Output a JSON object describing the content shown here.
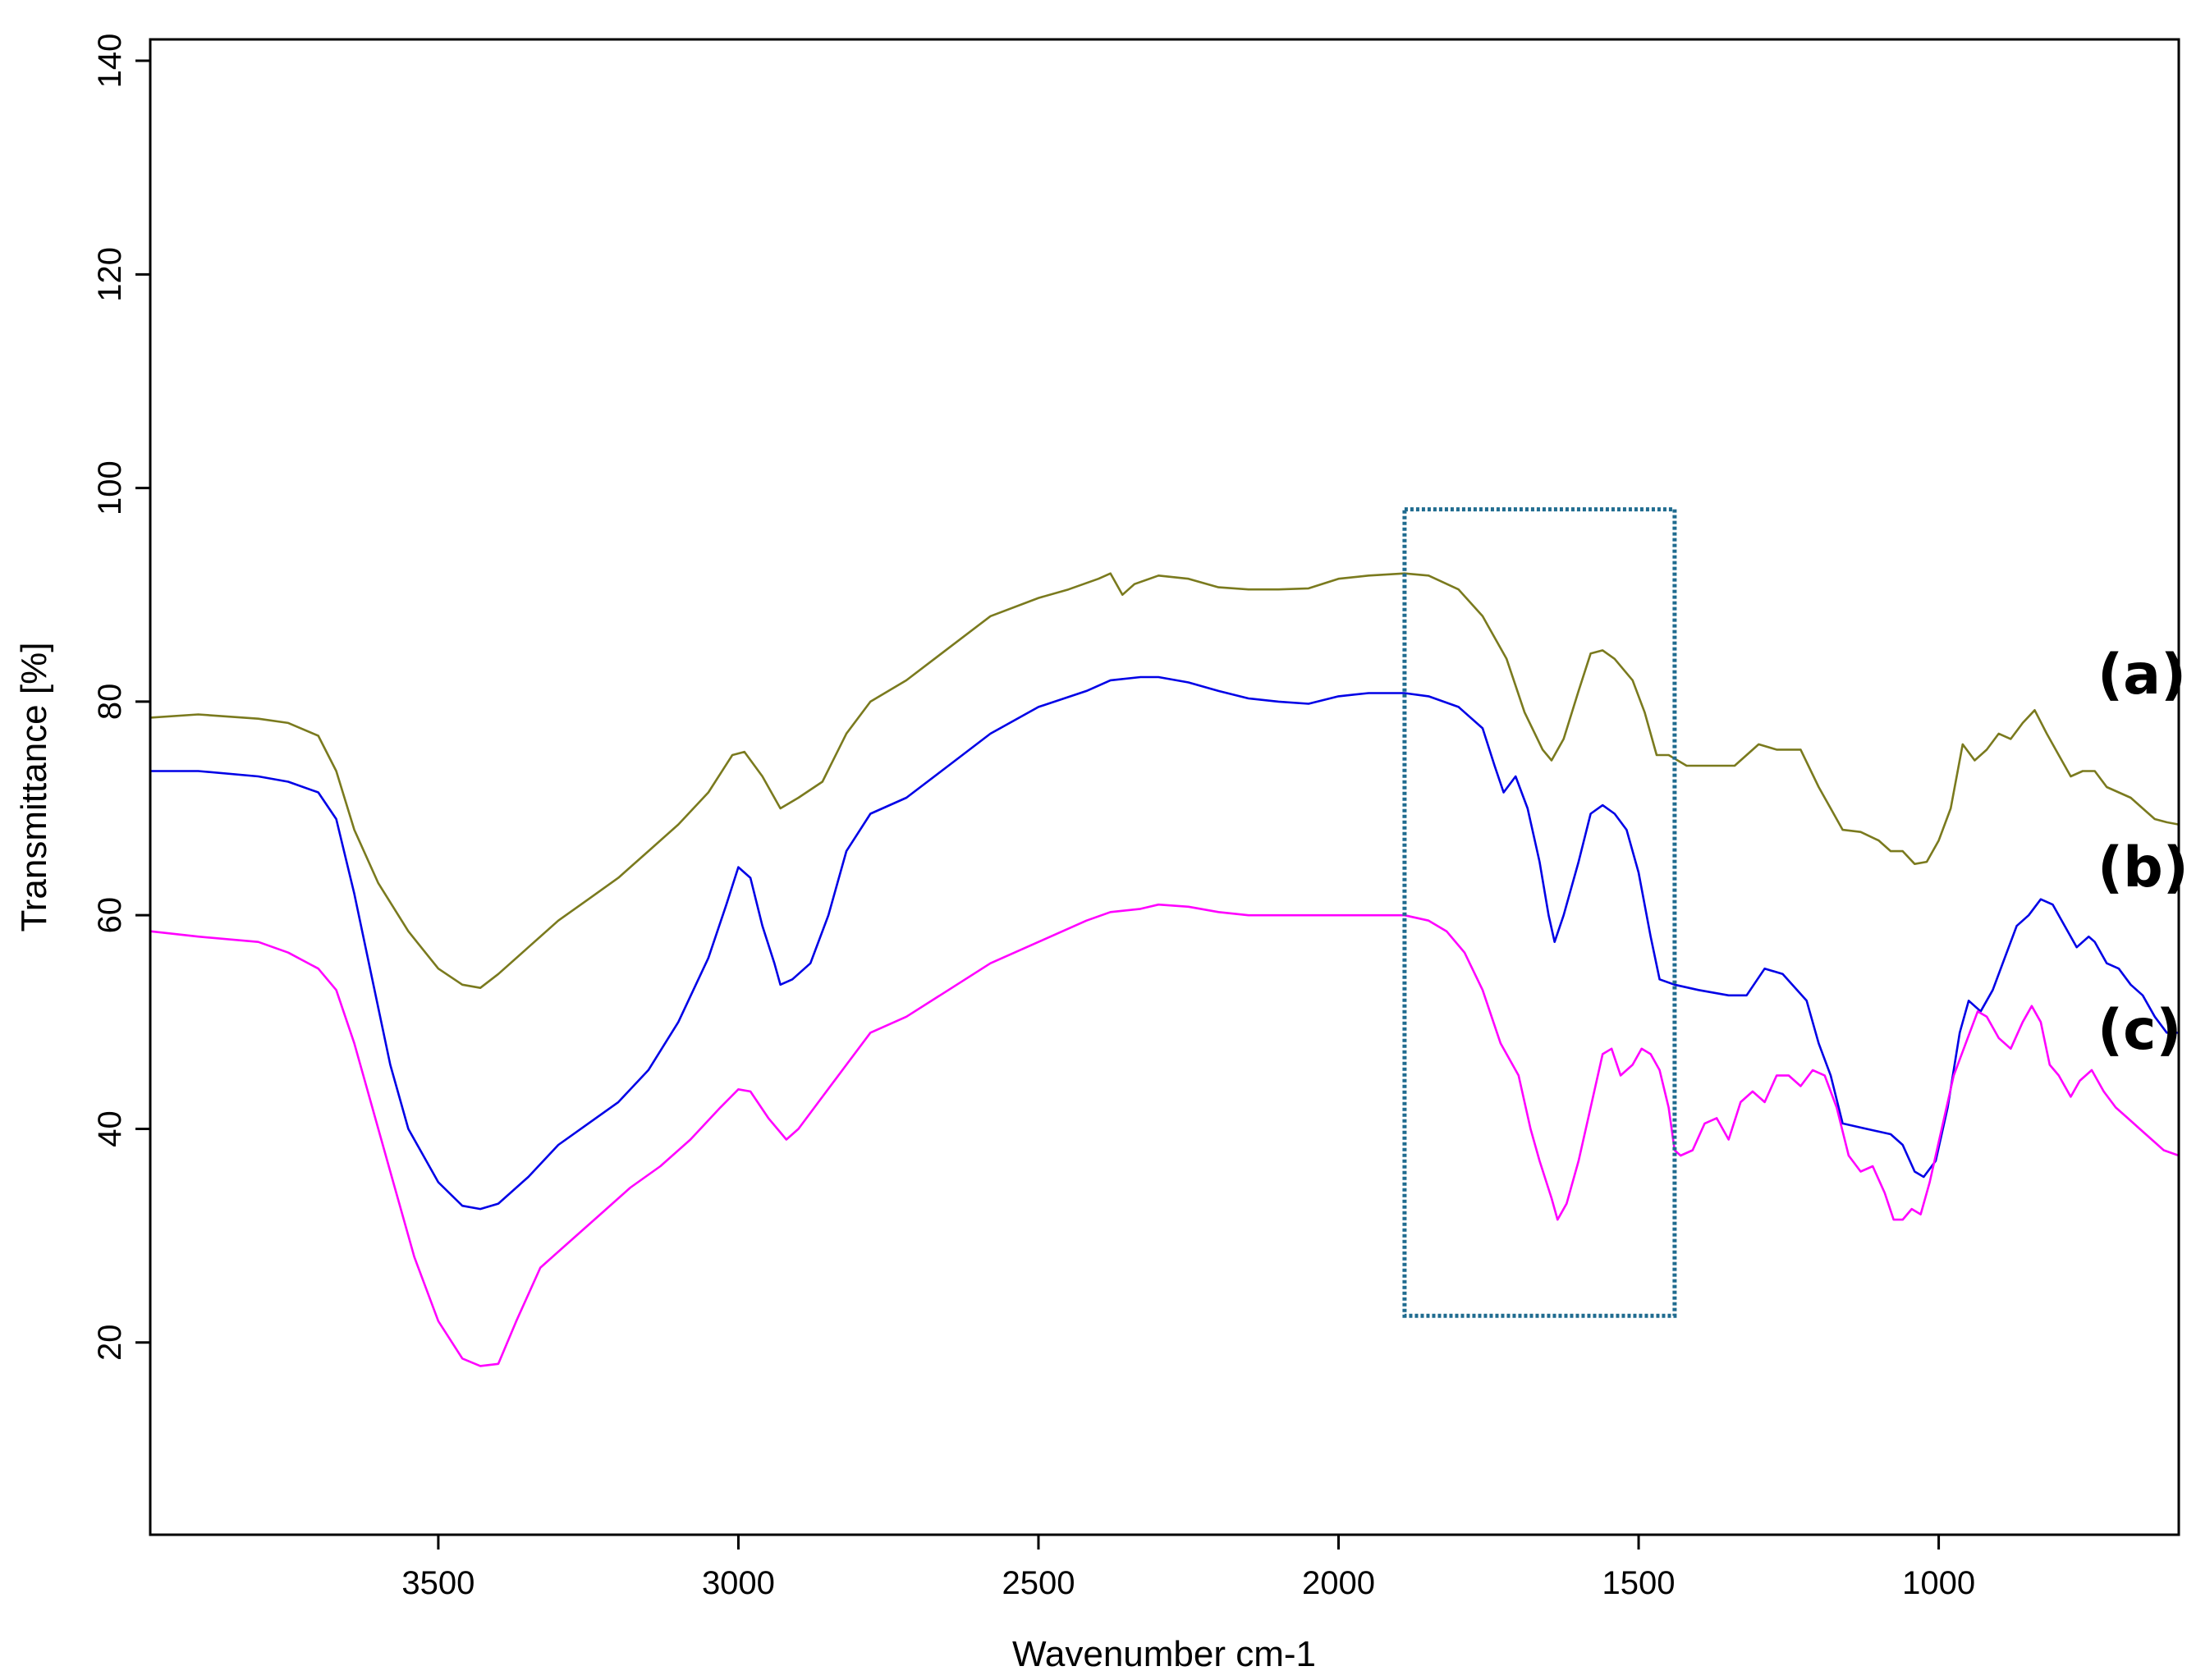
{
  "chart_data": {
    "type": "line",
    "title": "",
    "xlabel": "Wavenumber cm-1",
    "ylabel": "Transmittance [%]",
    "xlim": [
      3980,
      600
    ],
    "ylim": [
      2,
      142
    ],
    "x_reversed": true,
    "grid": false,
    "legend": "none",
    "xticks": [
      3500,
      3000,
      2500,
      2000,
      1500,
      1000
    ],
    "yticks": [
      20,
      40,
      60,
      80,
      100,
      120,
      140
    ],
    "highlight_box": {
      "x": [
        1890,
        1440
      ],
      "y": [
        22.5,
        98
      ],
      "color": "#1f6b8f",
      "style": "dotted"
    },
    "series": [
      {
        "label": "(a)",
        "color": "#7a7a1e",
        "points": [
          [
            3980,
            78.5
          ],
          [
            3900,
            78.8
          ],
          [
            3800,
            78.4
          ],
          [
            3750,
            78.0
          ],
          [
            3700,
            76.8
          ],
          [
            3670,
            73.5
          ],
          [
            3640,
            68.0
          ],
          [
            3600,
            63.0
          ],
          [
            3550,
            58.5
          ],
          [
            3500,
            55.0
          ],
          [
            3460,
            53.5
          ],
          [
            3430,
            53.2
          ],
          [
            3400,
            54.5
          ],
          [
            3350,
            57.0
          ],
          [
            3300,
            59.5
          ],
          [
            3250,
            61.5
          ],
          [
            3200,
            63.5
          ],
          [
            3150,
            66.0
          ],
          [
            3100,
            68.5
          ],
          [
            3050,
            71.5
          ],
          [
            3010,
            75.0
          ],
          [
            2990,
            75.3
          ],
          [
            2960,
            73.0
          ],
          [
            2930,
            70.0
          ],
          [
            2900,
            71.0
          ],
          [
            2860,
            72.5
          ],
          [
            2820,
            77.0
          ],
          [
            2780,
            80.0
          ],
          [
            2720,
            82.0
          ],
          [
            2650,
            85.0
          ],
          [
            2580,
            88.0
          ],
          [
            2500,
            89.7
          ],
          [
            2450,
            90.5
          ],
          [
            2400,
            91.5
          ],
          [
            2380,
            92.0
          ],
          [
            2360,
            90.0
          ],
          [
            2340,
            91.0
          ],
          [
            2300,
            91.8
          ],
          [
            2250,
            91.5
          ],
          [
            2200,
            90.7
          ],
          [
            2150,
            90.5
          ],
          [
            2100,
            90.5
          ],
          [
            2050,
            90.6
          ],
          [
            2000,
            91.5
          ],
          [
            1950,
            91.8
          ],
          [
            1890,
            92.0
          ],
          [
            1850,
            91.8
          ],
          [
            1800,
            90.5
          ],
          [
            1760,
            88.0
          ],
          [
            1720,
            84.0
          ],
          [
            1690,
            79.0
          ],
          [
            1660,
            75.5
          ],
          [
            1645,
            74.5
          ],
          [
            1625,
            76.5
          ],
          [
            1600,
            81.0
          ],
          [
            1580,
            84.5
          ],
          [
            1560,
            84.8
          ],
          [
            1540,
            84.0
          ],
          [
            1510,
            82.0
          ],
          [
            1490,
            79.0
          ],
          [
            1470,
            75.0
          ],
          [
            1450,
            75.0
          ],
          [
            1420,
            74.0
          ],
          [
            1380,
            74.0
          ],
          [
            1340,
            74.0
          ],
          [
            1300,
            76.0
          ],
          [
            1270,
            75.5
          ],
          [
            1230,
            75.5
          ],
          [
            1200,
            72.0
          ],
          [
            1180,
            70.0
          ],
          [
            1160,
            68.0
          ],
          [
            1130,
            67.8
          ],
          [
            1100,
            67.0
          ],
          [
            1080,
            66.0
          ],
          [
            1060,
            66.0
          ],
          [
            1040,
            64.8
          ],
          [
            1020,
            65.0
          ],
          [
            1000,
            67.0
          ],
          [
            980,
            70.0
          ],
          [
            960,
            76.0
          ],
          [
            940,
            74.5
          ],
          [
            920,
            75.5
          ],
          [
            900,
            77.0
          ],
          [
            880,
            76.5
          ],
          [
            860,
            78.0
          ],
          [
            840,
            79.2
          ],
          [
            820,
            77.0
          ],
          [
            800,
            75.0
          ],
          [
            780,
            73.0
          ],
          [
            760,
            73.5
          ],
          [
            740,
            73.5
          ],
          [
            720,
            72.0
          ],
          [
            700,
            71.5
          ],
          [
            680,
            71.0
          ],
          [
            660,
            70.0
          ],
          [
            640,
            69.0
          ],
          [
            620,
            68.7
          ],
          [
            600,
            68.5
          ]
        ]
      },
      {
        "label": "(b)",
        "color": "#0000e6",
        "points": [
          [
            3980,
            73.5
          ],
          [
            3900,
            73.5
          ],
          [
            3800,
            73.0
          ],
          [
            3750,
            72.5
          ],
          [
            3700,
            71.5
          ],
          [
            3670,
            69.0
          ],
          [
            3640,
            62.0
          ],
          [
            3610,
            54.0
          ],
          [
            3580,
            46.0
          ],
          [
            3550,
            40.0
          ],
          [
            3500,
            35.0
          ],
          [
            3460,
            32.8
          ],
          [
            3430,
            32.5
          ],
          [
            3400,
            33.0
          ],
          [
            3350,
            35.5
          ],
          [
            3300,
            38.5
          ],
          [
            3250,
            40.5
          ],
          [
            3200,
            42.5
          ],
          [
            3150,
            45.5
          ],
          [
            3100,
            50.0
          ],
          [
            3050,
            56.0
          ],
          [
            3020,
            61.0
          ],
          [
            3000,
            64.5
          ],
          [
            2980,
            63.5
          ],
          [
            2960,
            59.0
          ],
          [
            2940,
            55.5
          ],
          [
            2930,
            53.5
          ],
          [
            2910,
            54.0
          ],
          [
            2880,
            55.5
          ],
          [
            2850,
            60.0
          ],
          [
            2820,
            66.0
          ],
          [
            2780,
            69.5
          ],
          [
            2720,
            71.0
          ],
          [
            2650,
            74.0
          ],
          [
            2580,
            77.0
          ],
          [
            2500,
            79.5
          ],
          [
            2420,
            81.0
          ],
          [
            2380,
            82.0
          ],
          [
            2330,
            82.3
          ],
          [
            2300,
            82.3
          ],
          [
            2250,
            81.8
          ],
          [
            2200,
            81.0
          ],
          [
            2150,
            80.3
          ],
          [
            2100,
            80.0
          ],
          [
            2050,
            79.8
          ],
          [
            2000,
            80.5
          ],
          [
            1950,
            80.8
          ],
          [
            1890,
            80.8
          ],
          [
            1850,
            80.5
          ],
          [
            1800,
            79.5
          ],
          [
            1760,
            77.5
          ],
          [
            1740,
            74.0
          ],
          [
            1725,
            71.5
          ],
          [
            1705,
            73.0
          ],
          [
            1685,
            70.0
          ],
          [
            1665,
            65.0
          ],
          [
            1650,
            60.0
          ],
          [
            1640,
            57.5
          ],
          [
            1625,
            60.0
          ],
          [
            1600,
            65.0
          ],
          [
            1580,
            69.5
          ],
          [
            1560,
            70.3
          ],
          [
            1540,
            69.5
          ],
          [
            1520,
            68.0
          ],
          [
            1500,
            64.0
          ],
          [
            1480,
            58.0
          ],
          [
            1465,
            54.0
          ],
          [
            1440,
            53.5
          ],
          [
            1400,
            53.0
          ],
          [
            1350,
            52.5
          ],
          [
            1320,
            52.5
          ],
          [
            1290,
            55.0
          ],
          [
            1260,
            54.5
          ],
          [
            1220,
            52.0
          ],
          [
            1200,
            48.0
          ],
          [
            1180,
            45.0
          ],
          [
            1160,
            40.5
          ],
          [
            1120,
            40.0
          ],
          [
            1080,
            39.5
          ],
          [
            1060,
            38.5
          ],
          [
            1040,
            36.0
          ],
          [
            1025,
            35.5
          ],
          [
            1005,
            37.0
          ],
          [
            985,
            42.0
          ],
          [
            965,
            49.0
          ],
          [
            950,
            52.0
          ],
          [
            930,
            51.0
          ],
          [
            910,
            53.0
          ],
          [
            890,
            56.0
          ],
          [
            870,
            59.0
          ],
          [
            850,
            60.0
          ],
          [
            830,
            61.5
          ],
          [
            810,
            61.0
          ],
          [
            790,
            59.0
          ],
          [
            770,
            57.0
          ],
          [
            750,
            58.0
          ],
          [
            740,
            57.5
          ],
          [
            720,
            55.5
          ],
          [
            700,
            55.0
          ],
          [
            680,
            53.5
          ],
          [
            660,
            52.5
          ],
          [
            640,
            50.5
          ],
          [
            620,
            49.0
          ],
          [
            600,
            49.0
          ]
        ]
      },
      {
        "label": "(c)",
        "color": "#ff00ff",
        "points": [
          [
            3980,
            58.5
          ],
          [
            3900,
            58.0
          ],
          [
            3800,
            57.5
          ],
          [
            3750,
            56.5
          ],
          [
            3700,
            55.0
          ],
          [
            3670,
            53.0
          ],
          [
            3640,
            48.0
          ],
          [
            3610,
            42.0
          ],
          [
            3580,
            36.0
          ],
          [
            3540,
            28.0
          ],
          [
            3500,
            22.0
          ],
          [
            3460,
            18.5
          ],
          [
            3430,
            17.8
          ],
          [
            3400,
            18.0
          ],
          [
            3370,
            22.0
          ],
          [
            3330,
            27.0
          ],
          [
            3280,
            29.5
          ],
          [
            3230,
            32.0
          ],
          [
            3180,
            34.5
          ],
          [
            3130,
            36.5
          ],
          [
            3080,
            39.0
          ],
          [
            3030,
            42.0
          ],
          [
            3000,
            43.7
          ],
          [
            2980,
            43.5
          ],
          [
            2950,
            41.0
          ],
          [
            2920,
            39.0
          ],
          [
            2900,
            40.0
          ],
          [
            2860,
            43.0
          ],
          [
            2820,
            46.0
          ],
          [
            2780,
            49.0
          ],
          [
            2720,
            50.5
          ],
          [
            2650,
            53.0
          ],
          [
            2580,
            55.5
          ],
          [
            2500,
            57.5
          ],
          [
            2420,
            59.5
          ],
          [
            2380,
            60.3
          ],
          [
            2330,
            60.6
          ],
          [
            2300,
            61.0
          ],
          [
            2250,
            60.8
          ],
          [
            2200,
            60.3
          ],
          [
            2150,
            60.0
          ],
          [
            2100,
            60.0
          ],
          [
            2050,
            60.0
          ],
          [
            2000,
            60.0
          ],
          [
            1950,
            60.0
          ],
          [
            1890,
            60.0
          ],
          [
            1850,
            59.5
          ],
          [
            1820,
            58.5
          ],
          [
            1790,
            56.5
          ],
          [
            1760,
            53.0
          ],
          [
            1730,
            48.0
          ],
          [
            1700,
            45.0
          ],
          [
            1680,
            40.0
          ],
          [
            1665,
            37.0
          ],
          [
            1645,
            33.5
          ],
          [
            1635,
            31.5
          ],
          [
            1620,
            33.0
          ],
          [
            1600,
            37.0
          ],
          [
            1580,
            42.0
          ],
          [
            1560,
            47.0
          ],
          [
            1545,
            47.5
          ],
          [
            1530,
            45.0
          ],
          [
            1510,
            46.0
          ],
          [
            1495,
            47.5
          ],
          [
            1480,
            47.0
          ],
          [
            1465,
            45.5
          ],
          [
            1450,
            42.0
          ],
          [
            1440,
            38.0
          ],
          [
            1430,
            37.5
          ],
          [
            1410,
            38.0
          ],
          [
            1390,
            40.5
          ],
          [
            1370,
            41.0
          ],
          [
            1350,
            39.0
          ],
          [
            1330,
            42.5
          ],
          [
            1310,
            43.5
          ],
          [
            1290,
            42.5
          ],
          [
            1270,
            45.0
          ],
          [
            1250,
            45.0
          ],
          [
            1230,
            44.0
          ],
          [
            1210,
            45.5
          ],
          [
            1190,
            45.0
          ],
          [
            1170,
            42.0
          ],
          [
            1150,
            37.5
          ],
          [
            1130,
            36.0
          ],
          [
            1110,
            36.5
          ],
          [
            1090,
            34.0
          ],
          [
            1075,
            31.5
          ],
          [
            1060,
            31.5
          ],
          [
            1045,
            32.5
          ],
          [
            1030,
            32.0
          ],
          [
            1015,
            35.0
          ],
          [
            995,
            40.0
          ],
          [
            975,
            45.0
          ],
          [
            955,
            48.0
          ],
          [
            935,
            51.0
          ],
          [
            920,
            50.5
          ],
          [
            900,
            48.5
          ],
          [
            880,
            47.5
          ],
          [
            860,
            50.0
          ],
          [
            845,
            51.5
          ],
          [
            830,
            50.0
          ],
          [
            815,
            46.0
          ],
          [
            800,
            45.0
          ],
          [
            780,
            43.0
          ],
          [
            765,
            44.5
          ],
          [
            745,
            45.5
          ],
          [
            725,
            43.5
          ],
          [
            705,
            42.0
          ],
          [
            685,
            41.0
          ],
          [
            665,
            40.0
          ],
          [
            645,
            39.0
          ],
          [
            625,
            38.0
          ],
          [
            600,
            37.5
          ]
        ]
      }
    ]
  }
}
